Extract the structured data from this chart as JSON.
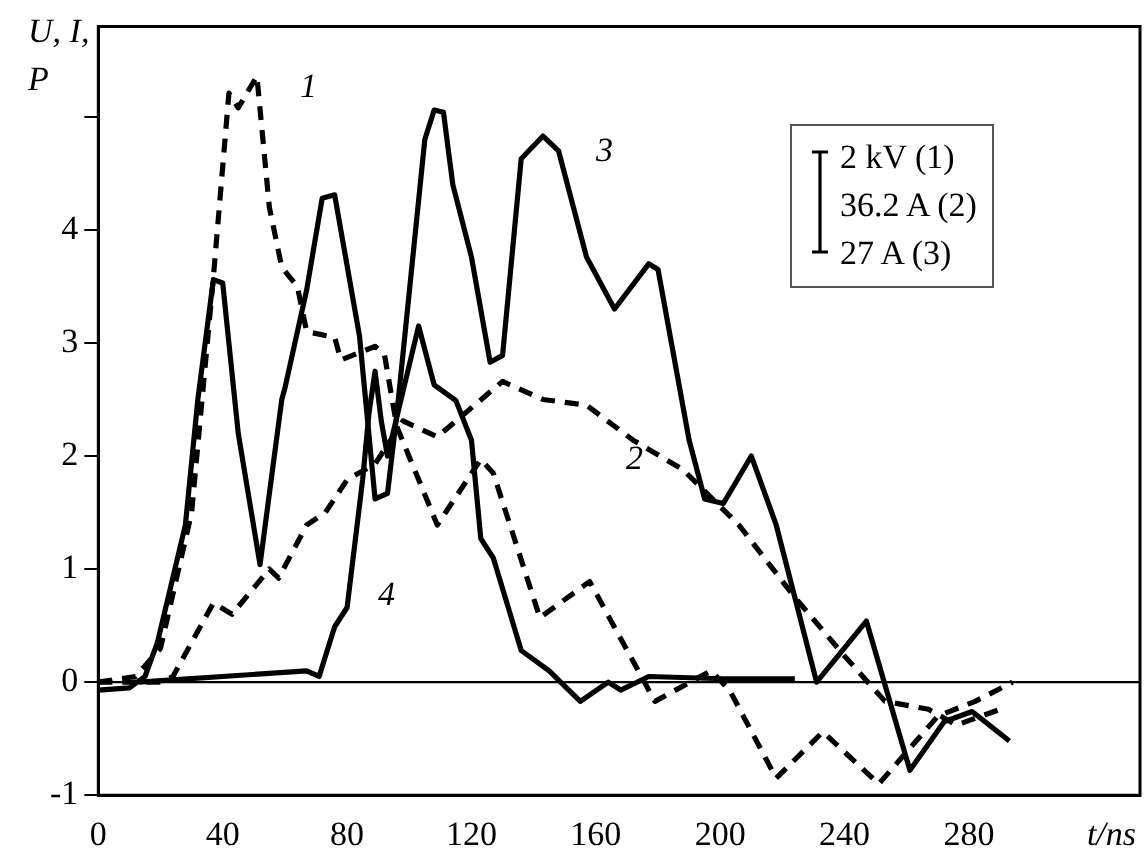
{
  "chart_data": {
    "type": "line",
    "xlabel": "t/ns",
    "ylabel": "U, I,\nP",
    "xlim": [
      0,
      335
    ],
    "ylim": [
      -1,
      5.8
    ],
    "xticks": [
      0,
      40,
      80,
      120,
      160,
      200,
      240,
      280
    ],
    "yticks": [
      -1,
      0,
      1,
      2,
      3,
      4,
      {
        "value": 5,
        "label": null
      }
    ],
    "grid": false,
    "legend": false,
    "marker": "none",
    "series": [
      {
        "name": "1",
        "color": "#000000",
        "line_style": "dashed",
        "x": [
          0,
          12,
          20,
          30,
          37,
          42,
          45,
          51,
          55,
          59,
          64,
          67,
          76,
          78,
          89,
          92,
          96,
          109,
          123,
          127,
          142,
          158,
          179,
          197,
          203,
          218,
          233,
          251,
          270,
          282,
          294
        ],
        "values": [
          0,
          0.05,
          0.3,
          1.5,
          3.58,
          5.21,
          5.08,
          5.36,
          4.2,
          3.67,
          3.5,
          3.1,
          3.05,
          2.85,
          2.97,
          2.9,
          2.26,
          1.39,
          1.97,
          1.85,
          0.57,
          0.89,
          -0.17,
          0.1,
          -0.07,
          -0.85,
          -0.44,
          -0.9,
          -0.3,
          -0.17,
          0
        ]
      },
      {
        "name": "2",
        "color": "#000000",
        "line_style": "dashed",
        "x": [
          0,
          20,
          24,
          37,
          43,
          55,
          58,
          67,
          73,
          80,
          89,
          98,
          109,
          130,
          143,
          157,
          172,
          188,
          206,
          224,
          240,
          253,
          267,
          276,
          290
        ],
        "values": [
          0,
          0,
          0.05,
          0.7,
          0.6,
          1.0,
          0.92,
          1.39,
          1.5,
          1.79,
          1.93,
          2.31,
          2.17,
          2.66,
          2.5,
          2.45,
          2.14,
          1.88,
          1.39,
          0.75,
          0.23,
          -0.17,
          -0.24,
          -0.38,
          -0.24
        ]
      },
      {
        "name": "3",
        "color": "#000000",
        "line_style": "solid",
        "x": [
          0,
          10,
          15,
          19,
          28,
          32,
          37,
          40,
          45,
          52,
          59,
          60,
          67,
          72,
          76,
          84,
          89,
          93,
          96,
          105,
          108,
          111,
          114,
          120,
          126,
          130,
          136,
          143,
          148,
          157,
          166,
          177,
          180,
          190,
          195,
          201,
          210,
          218,
          231,
          247,
          261,
          272,
          281,
          293
        ],
        "values": [
          -0.07,
          -0.05,
          0.05,
          0.35,
          1.39,
          2.5,
          3.56,
          3.53,
          2.2,
          1.04,
          2.5,
          2.6,
          3.47,
          4.28,
          4.31,
          3.06,
          1.62,
          1.67,
          2.37,
          4.8,
          5.06,
          5.04,
          4.4,
          3.76,
          2.83,
          2.89,
          4.63,
          4.83,
          4.7,
          3.76,
          3.3,
          3.7,
          3.65,
          2.14,
          1.62,
          1.58,
          2.0,
          1.39,
          0,
          0.54,
          -0.78,
          -0.35,
          -0.26,
          -0.52
        ]
      },
      {
        "name": "4",
        "color": "#000000",
        "line_style": "solid",
        "x": [
          13,
          67,
          71,
          76,
          80,
          85,
          87,
          89,
          91,
          93,
          103,
          108,
          115,
          120,
          123,
          127,
          136,
          145,
          155,
          164,
          168,
          177,
          201,
          224
        ],
        "values": [
          0,
          0.1,
          0.05,
          0.49,
          0.66,
          1.79,
          2.37,
          2.75,
          2.31,
          2.0,
          3.15,
          2.63,
          2.49,
          2.14,
          1.27,
          1.1,
          0.28,
          0.1,
          -0.17,
          0,
          -0.07,
          0.05,
          0.03,
          0.03
        ]
      }
    ],
    "ref_lines": [
      {
        "axis": "y",
        "value": 0,
        "color": "#000000",
        "line_style": "solid"
      }
    ],
    "annotations": [
      "2 kV (1)",
      "36.2 A (2)",
      "27 A (3)"
    ]
  }
}
